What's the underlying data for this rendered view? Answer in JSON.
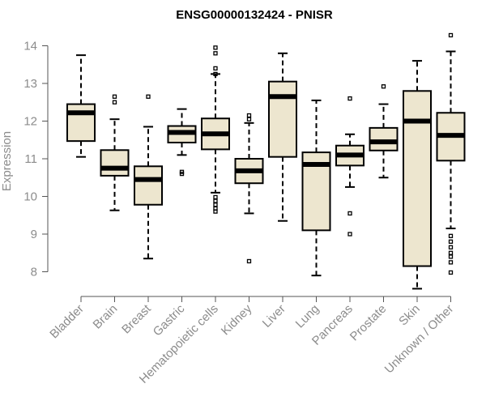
{
  "chart_data": {
    "type": "boxplot",
    "title": "ENSG00000132424 - PNISR",
    "ylabel": "Expression",
    "ylim": [
      7.5,
      14.3
    ],
    "yticks": [
      8,
      9,
      10,
      11,
      12,
      13,
      14
    ],
    "colors": {
      "box_fill": "#ede6cf",
      "stroke": "#000000",
      "axis_text": "#8c8c8c"
    },
    "categories": [
      "Bladder",
      "Brain",
      "Breast",
      "Gastric",
      "Hematopoietic cells",
      "Kidney",
      "Liver",
      "Lung",
      "Pancreas",
      "Prostate",
      "Skin",
      "Unknown / Other"
    ],
    "boxes": [
      {
        "whisker_low": 11.05,
        "q1": 11.47,
        "median": 12.22,
        "q3": 12.45,
        "whisker_high": 13.75,
        "outliers": []
      },
      {
        "whisker_low": 9.63,
        "q1": 10.55,
        "median": 10.75,
        "q3": 11.23,
        "whisker_high": 12.05,
        "outliers": [
          12.65,
          12.5
        ]
      },
      {
        "whisker_low": 8.35,
        "q1": 9.78,
        "median": 10.45,
        "q3": 10.8,
        "whisker_high": 11.85,
        "outliers": [
          12.65
        ]
      },
      {
        "whisker_low": 11.1,
        "q1": 11.43,
        "median": 11.7,
        "q3": 11.87,
        "whisker_high": 12.32,
        "outliers": [
          10.65,
          10.6
        ]
      },
      {
        "whisker_low": 10.1,
        "q1": 11.25,
        "median": 11.66,
        "q3": 12.07,
        "whisker_high": 13.25,
        "outliers": [
          13.95,
          13.8,
          13.4,
          13.25,
          9.98,
          9.88,
          9.78,
          9.68,
          9.6
        ]
      },
      {
        "whisker_low": 9.55,
        "q1": 10.35,
        "median": 10.68,
        "q3": 11.0,
        "whisker_high": 11.95,
        "outliers": [
          12.15,
          12.05,
          8.28
        ]
      },
      {
        "whisker_low": 9.35,
        "q1": 11.05,
        "median": 12.65,
        "q3": 13.05,
        "whisker_high": 13.8,
        "outliers": []
      },
      {
        "whisker_low": 7.9,
        "q1": 9.1,
        "median": 10.85,
        "q3": 11.17,
        "whisker_high": 12.55,
        "outliers": []
      },
      {
        "whisker_low": 10.25,
        "q1": 10.82,
        "median": 11.1,
        "q3": 11.35,
        "whisker_high": 11.65,
        "outliers": [
          12.6,
          9.55,
          9.0
        ]
      },
      {
        "whisker_low": 10.5,
        "q1": 11.22,
        "median": 11.45,
        "q3": 11.82,
        "whisker_high": 12.45,
        "outliers": [
          12.92
        ]
      },
      {
        "whisker_low": 7.55,
        "q1": 8.15,
        "median": 12.0,
        "q3": 12.8,
        "whisker_high": 13.6,
        "outliers": []
      },
      {
        "whisker_low": 9.15,
        "q1": 10.95,
        "median": 11.62,
        "q3": 12.22,
        "whisker_high": 13.85,
        "outliers": [
          14.28,
          8.95,
          8.8,
          8.65,
          8.5,
          8.4,
          8.25,
          7.98
        ]
      }
    ]
  }
}
